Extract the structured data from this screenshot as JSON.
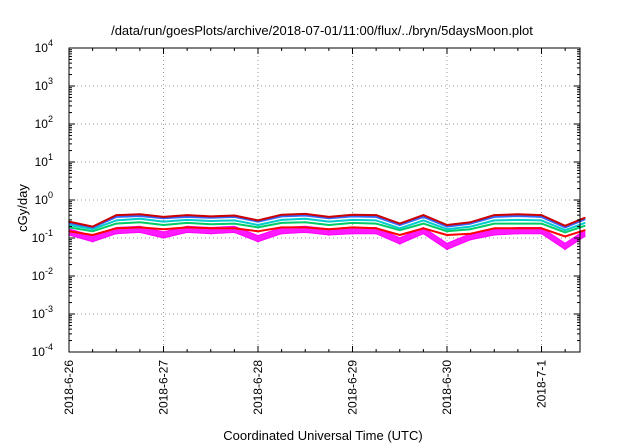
{
  "chart_data": {
    "type": "line",
    "title": "/data/run/goesPlots/archive/2018-07-01/11:00/flux/../bryn/5daysMoon.plot",
    "xlabel": "Coordinated Universal Time (UTC)",
    "ylabel": "cGy/day",
    "yscale": "log",
    "ylim": [
      0.0001,
      10000
    ],
    "grid": true,
    "xlim": [
      "2018-06-26 00:00",
      "2018-07-01 11:00"
    ],
    "x_ticks": [
      "2018-6-26",
      "2018-6-27",
      "2018-6-28",
      "2018-6-29",
      "2018-6-30",
      "2018-7-1"
    ],
    "y_ticks": [
      {
        "base": "10",
        "exp": "-4"
      },
      {
        "base": "10",
        "exp": "-3"
      },
      {
        "base": "10",
        "exp": "-2"
      },
      {
        "base": "10",
        "exp": "-1"
      },
      {
        "base": "10",
        "exp": "0"
      },
      {
        "base": "10",
        "exp": "1"
      },
      {
        "base": "10",
        "exp": "2"
      },
      {
        "base": "10",
        "exp": "3"
      },
      {
        "base": "10",
        "exp": "4"
      }
    ],
    "hours": [
      0,
      6,
      12,
      18,
      24,
      30,
      36,
      42,
      48,
      54,
      60,
      66,
      72,
      78,
      84,
      90,
      96,
      102,
      108,
      114,
      120,
      126,
      131
    ],
    "series": [
      {
        "color": "#ff00ff",
        "fill": true,
        "values": [
          0.12,
          0.08,
          0.13,
          0.14,
          0.1,
          0.14,
          0.13,
          0.14,
          0.08,
          0.13,
          0.14,
          0.12,
          0.13,
          0.13,
          0.07,
          0.13,
          0.05,
          0.09,
          0.12,
          0.13,
          0.13,
          0.05,
          0.11
        ]
      },
      {
        "color": "#ff0000",
        "values": [
          0.15,
          0.12,
          0.18,
          0.19,
          0.17,
          0.19,
          0.18,
          0.18,
          0.15,
          0.19,
          0.19,
          0.17,
          0.19,
          0.18,
          0.12,
          0.18,
          0.12,
          0.13,
          0.18,
          0.18,
          0.18,
          0.11,
          0.16
        ]
      },
      {
        "color": "#00cc66",
        "values": [
          0.19,
          0.15,
          0.24,
          0.26,
          0.22,
          0.25,
          0.23,
          0.24,
          0.19,
          0.25,
          0.26,
          0.22,
          0.25,
          0.24,
          0.16,
          0.24,
          0.15,
          0.17,
          0.24,
          0.24,
          0.24,
          0.14,
          0.21
        ]
      },
      {
        "color": "#00cccc",
        "values": [
          0.22,
          0.17,
          0.29,
          0.32,
          0.27,
          0.3,
          0.28,
          0.29,
          0.22,
          0.3,
          0.32,
          0.27,
          0.3,
          0.29,
          0.18,
          0.29,
          0.17,
          0.2,
          0.29,
          0.3,
          0.29,
          0.16,
          0.25
        ]
      },
      {
        "color": "#3366ff",
        "values": [
          0.25,
          0.19,
          0.36,
          0.38,
          0.33,
          0.36,
          0.34,
          0.36,
          0.27,
          0.37,
          0.39,
          0.33,
          0.37,
          0.36,
          0.22,
          0.36,
          0.2,
          0.24,
          0.36,
          0.38,
          0.36,
          0.19,
          0.31
        ]
      },
      {
        "color": "#cc0000",
        "values": [
          0.27,
          0.2,
          0.4,
          0.42,
          0.36,
          0.4,
          0.37,
          0.39,
          0.29,
          0.41,
          0.43,
          0.36,
          0.41,
          0.4,
          0.24,
          0.4,
          0.22,
          0.26,
          0.4,
          0.42,
          0.4,
          0.21,
          0.34
        ]
      }
    ]
  }
}
